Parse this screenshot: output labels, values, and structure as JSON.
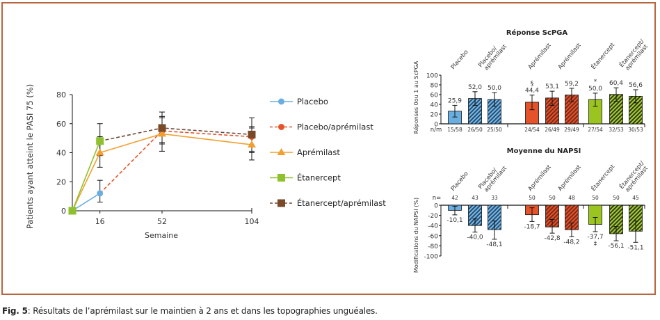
{
  "caption": {
    "label": "Fig. 5",
    "text": ": Résultats de l’aprémilast sur le maintien à 2 ans et dans les topographies unguéales."
  },
  "colors": {
    "frame": "#b8653d",
    "placebo": "#6aaee0",
    "placebo_apremilast": "#e5532b",
    "apremilast": "#f0a030",
    "etanercept": "#8fc12f",
    "etanercept_apremilast": "#7a4a28",
    "bar_placebo": "#6aaee0",
    "bar_placebo_apremilast": "#2f6f9f",
    "bar_apremilast": "#e5532b",
    "bar_apremilast_hatch": "#c8442a",
    "bar_etanercept": "#9cc421"
  },
  "chart_data": [
    {
      "type": "line",
      "title": "",
      "xlabel": "Semaine",
      "ylabel": "Patients ayant atteint le PASI 75 (%)",
      "x_ticks": [
        16,
        52,
        104
      ],
      "y_ticks": [
        0,
        20,
        40,
        60,
        80
      ],
      "xlim": [
        0,
        104
      ],
      "ylim": [
        0,
        80
      ],
      "legend_position": "right",
      "series": [
        {
          "name": "Placebo",
          "key": "placebo",
          "marker": "circle",
          "dash": false,
          "points": [
            [
              0,
              0
            ],
            [
              16,
              12
            ]
          ],
          "errors": [
            null,
            [
              6,
              21
            ]
          ]
        },
        {
          "name": "Placebo/aprémilast",
          "key": "placebo_apremilast",
          "marker": "circle",
          "dash": true,
          "points": [
            [
              16,
              12
            ],
            [
              52,
              55
            ],
            [
              104,
              51
            ]
          ],
          "errors": [
            null,
            [
              46,
              65
            ],
            [
              41,
              58
            ]
          ]
        },
        {
          "name": "Aprémilast",
          "key": "apremilast",
          "marker": "triangle",
          "dash": false,
          "points": [
            [
              0,
              0
            ],
            [
              16,
              40
            ],
            [
              52,
              53
            ],
            [
              104,
              45.5
            ]
          ],
          "errors": [
            null,
            [
              30,
              51
            ],
            [
              41,
              64
            ],
            [
              35,
              57
            ]
          ]
        },
        {
          "name": "Étanercept",
          "key": "etanercept",
          "marker": "square",
          "dash": false,
          "points": [
            [
              0,
              0
            ],
            [
              16,
              48
            ]
          ],
          "errors": [
            null,
            [
              38,
              60
            ]
          ]
        },
        {
          "name": "Étanercept/aprémilast",
          "key": "etanercept_apremilast",
          "marker": "square",
          "dash": true,
          "points": [
            [
              16,
              48
            ],
            [
              52,
              57
            ],
            [
              104,
              52.5
            ]
          ],
          "errors": [
            null,
            [
              47,
              68
            ],
            [
              40,
              64
            ]
          ]
        }
      ]
    },
    {
      "type": "bar",
      "title": "Réponse ScPGA",
      "ylabel": "Réponses 0ou 1 au ScPGA",
      "ylim": [
        0,
        100
      ],
      "y_ticks": [
        0,
        20,
        40,
        60,
        80,
        100
      ],
      "row_label": "n/m",
      "groups": [
        {
          "label": "Placebo",
          "bars": [
            {
              "value": 25.9,
              "label": "25,9",
              "nm": "15/58",
              "err": [
                14,
                38
              ],
              "style": "placebo",
              "hatch": false,
              "mark": ""
            }
          ]
        },
        {
          "label": "Placebo/ aprémilast",
          "bars": [
            {
              "value": 52.0,
              "label": "52,0",
              "nm": "26/50",
              "err": [
                38,
                66
              ],
              "style": "placebo_apremilast",
              "hatch": true,
              "mark": ""
            },
            {
              "value": 50.0,
              "label": "50,0",
              "nm": "25/50",
              "err": [
                36,
                64
              ],
              "style": "placebo_apremilast",
              "hatch": true,
              "mark": ""
            }
          ]
        },
        {
          "label": "Aprémilast",
          "bars": [
            {
              "value": 44.4,
              "label": "44,4",
              "nm": "24/54",
              "err": [
                29,
                59
              ],
              "style": "apremilast",
              "hatch": false,
              "mark": "§"
            }
          ]
        },
        {
          "label": "Aprémilast",
          "bars": [
            {
              "value": 53.1,
              "label": "53,1",
              "nm": "26/49",
              "err": [
                38,
                67
              ],
              "style": "apremilast",
              "hatch": true,
              "mark": ""
            },
            {
              "value": 59.2,
              "label": "59,2",
              "nm": "29/49",
              "err": [
                45,
                73
              ],
              "style": "apremilast",
              "hatch": true,
              "mark": ""
            }
          ]
        },
        {
          "label": "Étanercept",
          "bars": [
            {
              "value": 50.0,
              "label": "50,0",
              "nm": "27/54",
              "err": [
                36,
                63
              ],
              "style": "etanercept",
              "hatch": false,
              "mark": "*"
            }
          ]
        },
        {
          "label": "Étanercept/ aprémilast",
          "bars": [
            {
              "value": 60.4,
              "label": "60,4",
              "nm": "32/53",
              "err": [
                46,
                74
              ],
              "style": "etanercept",
              "hatch": true,
              "mark": ""
            },
            {
              "value": 56.6,
              "label": "56,6",
              "nm": "30/53",
              "err": [
                43,
                70
              ],
              "style": "etanercept",
              "hatch": true,
              "mark": ""
            }
          ]
        }
      ]
    },
    {
      "type": "bar",
      "title": "Moyenne du NAPSI",
      "ylabel": "Modifications du NAPSI (%)",
      "ylim": [
        -100,
        0
      ],
      "y_ticks": [
        0,
        -20,
        -40,
        -60,
        -80,
        -100
      ],
      "row_label": "n=",
      "groups": [
        {
          "label": "Placebo",
          "bars": [
            {
              "value": -10.1,
              "label": "-10,1",
              "n": "42",
              "err": [
                -2,
                -19
              ],
              "style": "placebo",
              "hatch": false,
              "mark": ""
            }
          ]
        },
        {
          "label": "Placebo/ aprémilast",
          "bars": [
            {
              "value": -40.0,
              "label": "-40,0",
              "n": "43",
              "err": [
                -27,
                -53
              ],
              "style": "placebo_apremilast",
              "hatch": true,
              "mark": ""
            },
            {
              "value": -48.1,
              "label": "-48,1",
              "n": "33",
              "err": [
                -31,
                -67
              ],
              "style": "placebo_apremilast",
              "hatch": true,
              "mark": ""
            }
          ]
        },
        {
          "label": "Aprémilast",
          "bars": [
            {
              "value": -18.7,
              "label": "-18,7",
              "n": "50",
              "err": [
                -5,
                -32
              ],
              "style": "apremilast",
              "hatch": false,
              "mark": ""
            }
          ]
        },
        {
          "label": "Aprémilast",
          "bars": [
            {
              "value": -42.8,
              "label": "-42,8",
              "n": "50",
              "err": [
                -28,
                -55
              ],
              "style": "apremilast",
              "hatch": true,
              "mark": ""
            },
            {
              "value": -48.2,
              "label": "-48,2",
              "n": "48",
              "err": [
                -35,
                -62
              ],
              "style": "apremilast",
              "hatch": true,
              "mark": ""
            }
          ]
        },
        {
          "label": "Étanercept",
          "bars": [
            {
              "value": -37.7,
              "label": "-37,7",
              "n": "50",
              "err": [
                -24,
                -52
              ],
              "style": "etanercept",
              "hatch": false,
              "mark": "‡"
            }
          ]
        },
        {
          "label": "Étanercept/ aprémilast",
          "bars": [
            {
              "value": -56.1,
              "label": "-56,1",
              "n": "50",
              "err": [
                -42,
                -70
              ],
              "style": "etanercept",
              "hatch": true,
              "mark": ""
            },
            {
              "value": -51.1,
              "label": "-51,1",
              "n": "45",
              "err": [
                -31,
                -73
              ],
              "style": "etanercept",
              "hatch": true,
              "mark": ""
            }
          ]
        }
      ]
    }
  ]
}
